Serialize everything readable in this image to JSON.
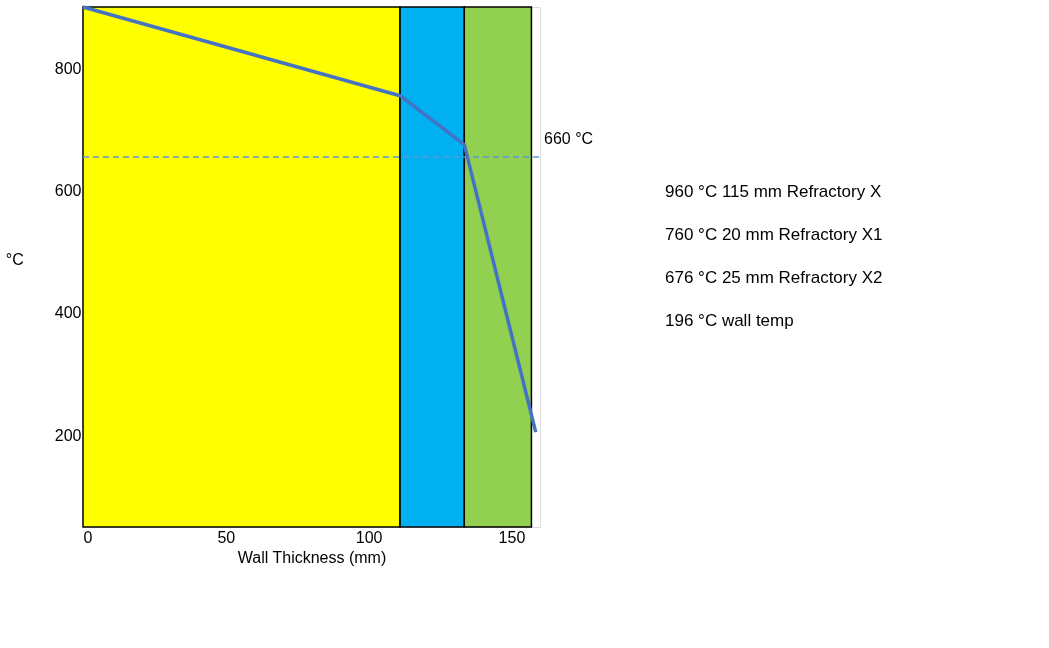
{
  "chart_data": {
    "type": "line",
    "xlabel": "Wall Thickness (mm)",
    "ylabel": "°C",
    "x": [
      0,
      111,
      133.5,
      158.5
    ],
    "series": [
      {
        "color": "#4472c4",
        "values": [
          900,
          755,
          675,
          205
        ]
      }
    ],
    "xlim": [
      0,
      160
    ],
    "ylim": [
      50,
      900
    ],
    "xticks": [
      0,
      50,
      100,
      150
    ],
    "yticks": [
      200,
      400,
      600,
      800
    ],
    "grid": false,
    "marker": "none",
    "line_style": "solid",
    "bands": [
      {
        "axis": "x",
        "from": 0,
        "to": 111,
        "label": null,
        "color": "#ffff00"
      },
      {
        "axis": "x",
        "from": 111,
        "to": 133.5,
        "label": null,
        "color": "#00b0f0"
      },
      {
        "axis": "x",
        "from": 133.5,
        "to": 157,
        "label": null,
        "color": "#92d050"
      }
    ],
    "ref_lines": [
      {
        "axis": "y",
        "value": 655,
        "label": "660 °C",
        "color": "#5b9bd5",
        "line_style": "dashed"
      }
    ],
    "annotations": [
      "960 °C 115 mm Refractory X",
      "760 °C 20 mm Refractory X1",
      "676 °C 25 mm Refractory X2",
      "196 °C wall temp"
    ]
  }
}
